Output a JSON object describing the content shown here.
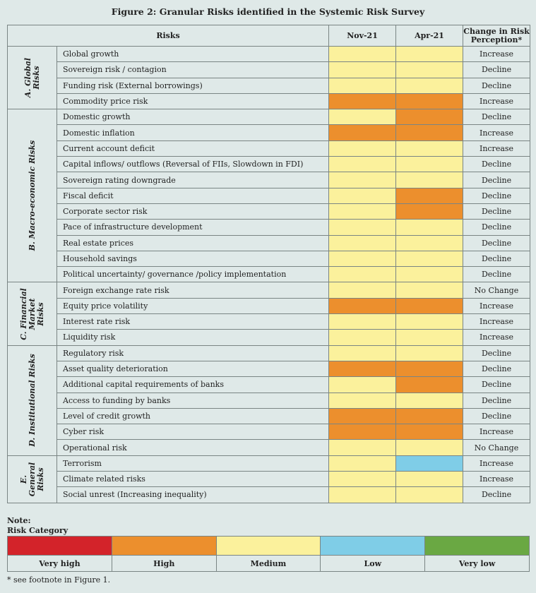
{
  "title": "Figure 2: Granular Risks identified in the Systemic Risk Survey",
  "headers": {
    "risks": "Risks",
    "nov": "Nov-21",
    "apr": "Apr-21",
    "change": "Change in Risk Perception*"
  },
  "colors": {
    "very_high": "#d3232a",
    "high": "#ec8f2d",
    "medium": "#fbf19c",
    "low": "#7fcde7",
    "very_low": "#6aa843"
  },
  "groups": [
    {
      "label": "A. Global Risks",
      "rows": [
        {
          "risk": "Global growth",
          "nov": "medium",
          "apr": "medium",
          "change": "Increase"
        },
        {
          "risk": "Sovereign risk / contagion",
          "nov": "medium",
          "apr": "medium",
          "change": "Decline"
        },
        {
          "risk": "Funding risk (External borrowings)",
          "nov": "medium",
          "apr": "medium",
          "change": "Decline"
        },
        {
          "risk": "Commodity price risk",
          "nov": "high",
          "apr": "high",
          "change": "Increase"
        }
      ]
    },
    {
      "label": "B. Macro-economic Risks",
      "rows": [
        {
          "risk": "Domestic growth",
          "nov": "medium",
          "apr": "high",
          "change": "Decline"
        },
        {
          "risk": "Domestic inflation",
          "nov": "high",
          "apr": "high",
          "change": "Increase"
        },
        {
          "risk": "Current account deficit",
          "nov": "medium",
          "apr": "medium",
          "change": "Increase"
        },
        {
          "risk": "Capital inflows/ outflows (Reversal of FIIs, Slowdown in FDI)",
          "nov": "medium",
          "apr": "medium",
          "change": "Decline"
        },
        {
          "risk": "Sovereign rating downgrade",
          "nov": "medium",
          "apr": "medium",
          "change": "Decline"
        },
        {
          "risk": "Fiscal deficit",
          "nov": "medium",
          "apr": "high",
          "change": "Decline"
        },
        {
          "risk": "Corporate sector risk",
          "nov": "medium",
          "apr": "high",
          "change": "Decline"
        },
        {
          "risk": "Pace of infrastructure development",
          "nov": "medium",
          "apr": "medium",
          "change": "Decline"
        },
        {
          "risk": "Real estate prices",
          "nov": "medium",
          "apr": "medium",
          "change": "Decline"
        },
        {
          "risk": "Household savings",
          "nov": "medium",
          "apr": "medium",
          "change": "Decline"
        },
        {
          "risk": "Political uncertainty/ governance /policy implementation",
          "nov": "medium",
          "apr": "medium",
          "change": "Decline"
        }
      ]
    },
    {
      "label": "C. Financial Market Risks",
      "rows": [
        {
          "risk": "Foreign exchange rate risk",
          "nov": "medium",
          "apr": "medium",
          "change": "No Change"
        },
        {
          "risk": "Equity price volatility",
          "nov": "high",
          "apr": "high",
          "change": "Increase"
        },
        {
          "risk": "Interest rate risk",
          "nov": "medium",
          "apr": "medium",
          "change": "Increase"
        },
        {
          "risk": "Liquidity risk",
          "nov": "medium",
          "apr": "medium",
          "change": "Increase"
        }
      ]
    },
    {
      "label": "D. Institutional Risks",
      "rows": [
        {
          "risk": "Regulatory risk",
          "nov": "medium",
          "apr": "medium",
          "change": "Decline"
        },
        {
          "risk": "Asset quality deterioration",
          "nov": "high",
          "apr": "high",
          "change": "Decline"
        },
        {
          "risk": "Additional capital requirements of banks",
          "nov": "medium",
          "apr": "high",
          "change": "Decline"
        },
        {
          "risk": "Access to funding by banks",
          "nov": "medium",
          "apr": "medium",
          "change": "Decline"
        },
        {
          "risk": "Level of credit growth",
          "nov": "high",
          "apr": "high",
          "change": "Decline"
        },
        {
          "risk": "Cyber risk",
          "nov": "high",
          "apr": "high",
          "change": "Increase"
        },
        {
          "risk": "Operational risk",
          "nov": "medium",
          "apr": "medium",
          "change": "No Change"
        }
      ]
    },
    {
      "label": "E. General Risks",
      "rows": [
        {
          "risk": "Terrorism",
          "nov": "medium",
          "apr": "low",
          "change": "Increase"
        },
        {
          "risk": "Climate related risks",
          "nov": "medium",
          "apr": "medium",
          "change": "Increase"
        },
        {
          "risk": "Social unrest (Increasing inequality)",
          "nov": "medium",
          "apr": "medium",
          "change": "Decline"
        }
      ]
    }
  ],
  "note": {
    "label": "Note:",
    "category_label": "Risk Category"
  },
  "legend": [
    {
      "key": "very_high",
      "label": "Very high"
    },
    {
      "key": "high",
      "label": "High"
    },
    {
      "key": "medium",
      "label": "Medium"
    },
    {
      "key": "low",
      "label": "Low"
    },
    {
      "key": "very_low",
      "label": "Very low"
    }
  ],
  "footnote": "* see footnote in Figure 1."
}
